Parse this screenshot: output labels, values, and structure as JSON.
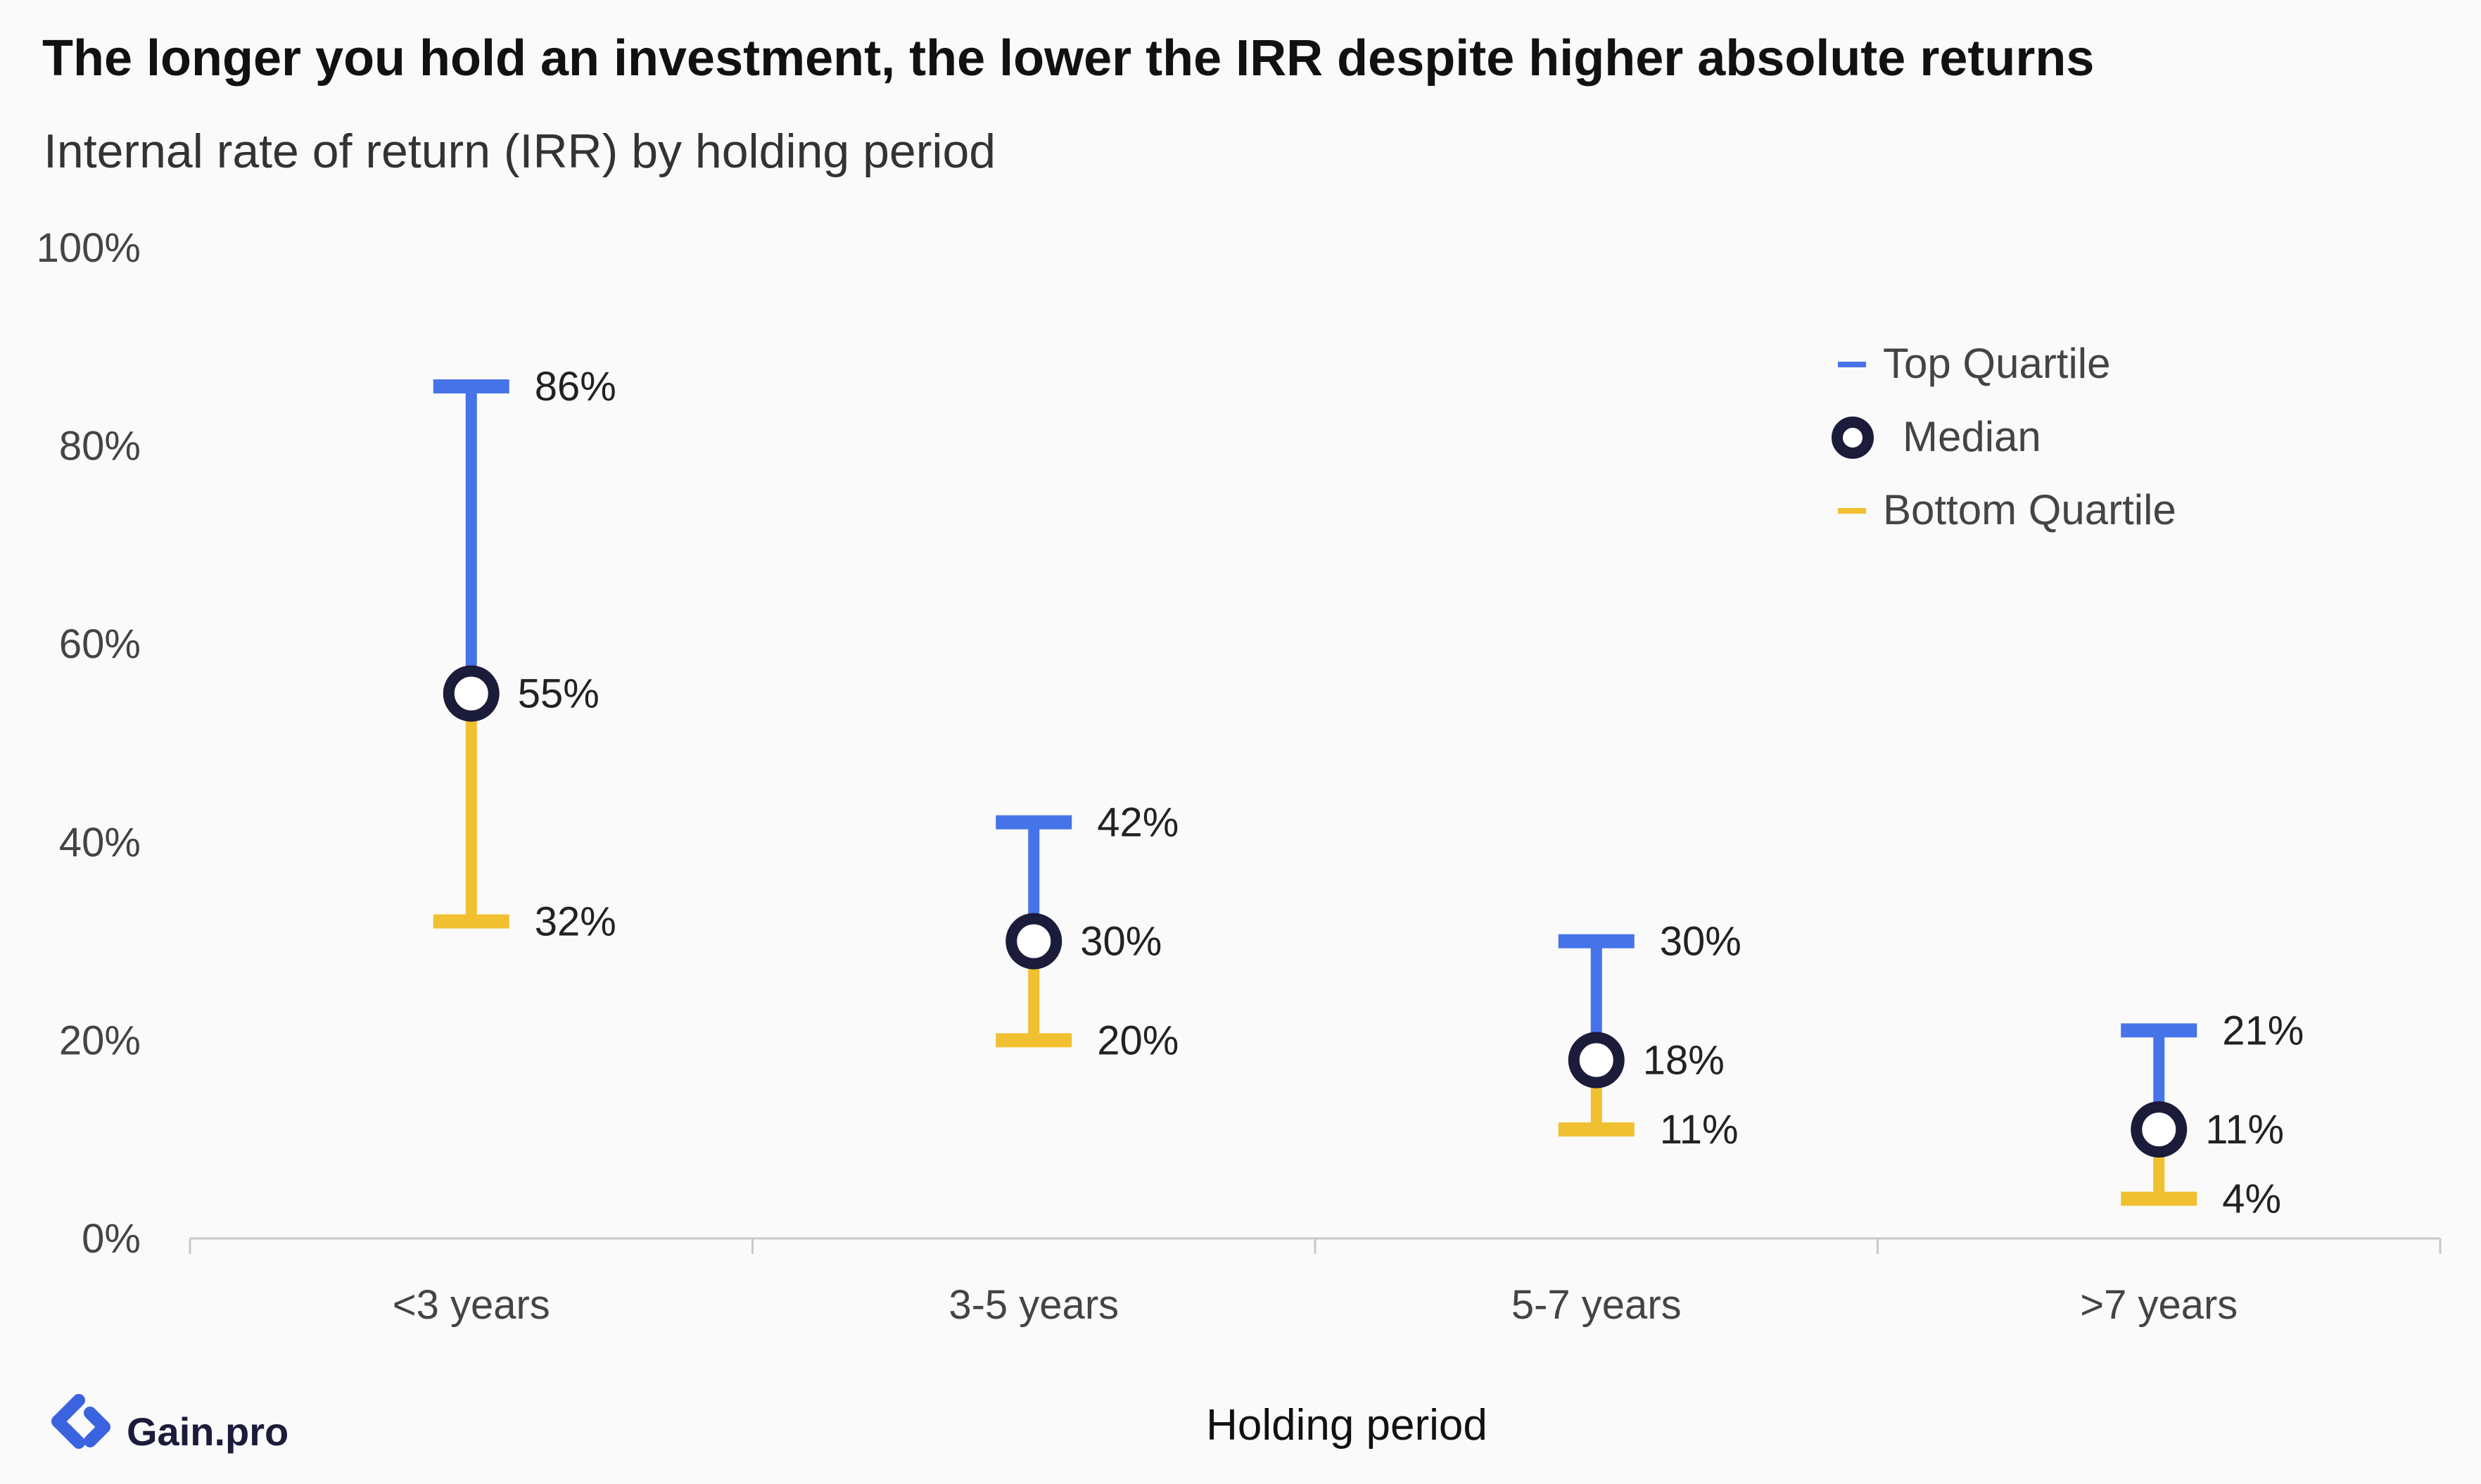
{
  "header": {
    "title": "The longer you hold an investment, the lower the IRR despite higher absolute returns",
    "subtitle": "Internal rate of return (IRR) by holding period"
  },
  "legend": {
    "top_quartile": "Top Quartile",
    "median": "Median",
    "bottom_quartile": "Bottom Quartile"
  },
  "axis": {
    "xlabel": "Holding period"
  },
  "brand": {
    "logo_text": "Gain.pro"
  },
  "colors": {
    "top": "#4673e8",
    "bottom": "#f0c030",
    "median_ring": "#1b1b3a",
    "median_fill": "#ffffff",
    "axis": "#c8c8c8"
  },
  "chart_data": {
    "type": "range",
    "title": "The longer you hold an investment, the lower the IRR despite higher absolute returns",
    "subtitle": "Internal rate of return (IRR) by holding period",
    "xlabel": "Holding period",
    "ylabel": "",
    "ylim": [
      0,
      100
    ],
    "yticks": [
      0,
      20,
      40,
      60,
      80,
      100
    ],
    "ytick_labels": [
      "0%",
      "20%",
      "40%",
      "60%",
      "80%",
      "100%"
    ],
    "categories": [
      "<3 years",
      "3-5 years",
      "5-7 years",
      ">7 years"
    ],
    "series": [
      {
        "name": "Top Quartile",
        "values": [
          86,
          42,
          30,
          21
        ],
        "labels": [
          "86%",
          "42%",
          "30%",
          "21%"
        ]
      },
      {
        "name": "Median",
        "values": [
          55,
          30,
          18,
          11
        ],
        "labels": [
          "55%",
          "30%",
          "18%",
          "11%"
        ]
      },
      {
        "name": "Bottom Quartile",
        "values": [
          32,
          20,
          11,
          4
        ],
        "labels": [
          "32%",
          "20%",
          "11%",
          "4%"
        ]
      }
    ],
    "legend_position": "top-right",
    "grid": false
  }
}
